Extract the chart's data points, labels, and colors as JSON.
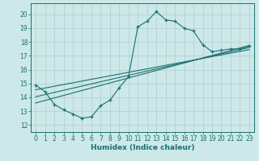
{
  "title": "",
  "xlabel": "Humidex (Indice chaleur)",
  "xlim": [
    -0.5,
    23.5
  ],
  "ylim": [
    11.5,
    20.8
  ],
  "xticks": [
    0,
    1,
    2,
    3,
    4,
    5,
    6,
    7,
    8,
    9,
    10,
    11,
    12,
    13,
    14,
    15,
    16,
    17,
    18,
    19,
    20,
    21,
    22,
    23
  ],
  "yticks": [
    12,
    13,
    14,
    15,
    16,
    17,
    18,
    19,
    20
  ],
  "background_color": "#cce8e8",
  "grid_color": "#b8d4d4",
  "line_color": "#1a7070",
  "line1_x": [
    0,
    1,
    2,
    3,
    4,
    5,
    6,
    7,
    8,
    9,
    10,
    11,
    12,
    13,
    14,
    15,
    16,
    17,
    18,
    19,
    20,
    21,
    22,
    23
  ],
  "line1_y": [
    14.9,
    14.4,
    13.5,
    13.1,
    12.8,
    12.5,
    12.6,
    13.4,
    13.8,
    14.7,
    15.5,
    19.1,
    19.5,
    20.2,
    19.6,
    19.5,
    19.0,
    18.8,
    17.8,
    17.3,
    17.4,
    17.5,
    17.5,
    17.7
  ],
  "line2_x": [
    0,
    23
  ],
  "line2_y": [
    13.6,
    17.75
  ],
  "line3_x": [
    0,
    23
  ],
  "line3_y": [
    14.55,
    17.45
  ],
  "line4_x": [
    0,
    23
  ],
  "line4_y": [
    14.05,
    17.6
  ]
}
